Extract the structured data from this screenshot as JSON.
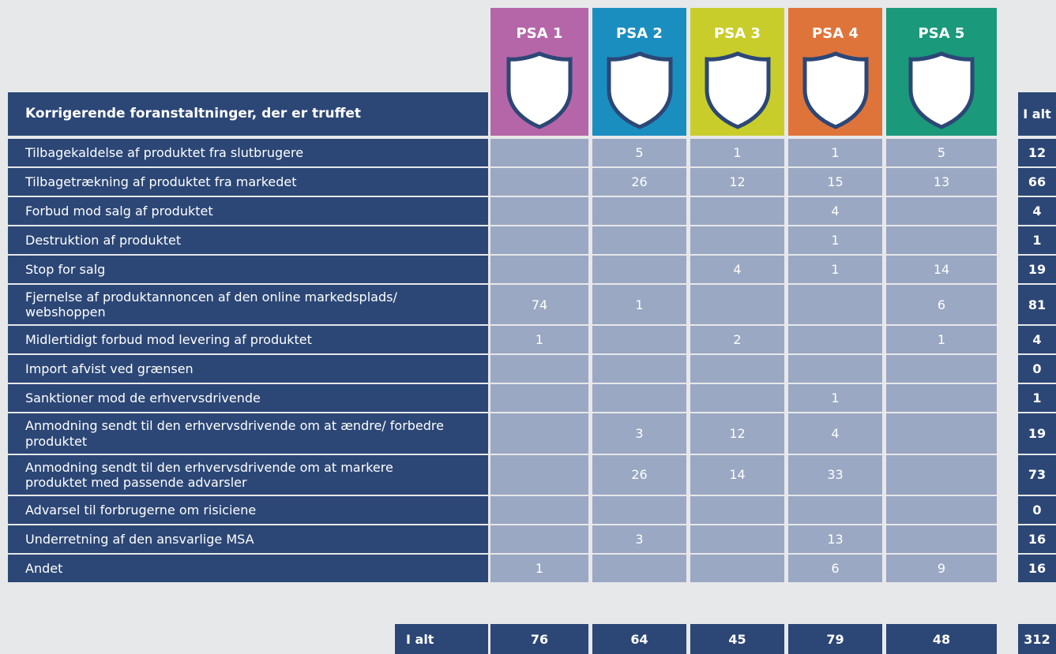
{
  "header": {
    "title": "Korrigerende foranstaltninger, der er truffet",
    "columns": [
      "PSA 1",
      "PSA 2",
      "PSA 3",
      "PSA 4",
      "PSA 5"
    ],
    "total": "I alt"
  },
  "rows": [
    {
      "label": "Tilbagekaldelse af produktet fra slutbrugere",
      "values": [
        null,
        5,
        1,
        1,
        5
      ],
      "total": 12
    },
    {
      "label": "Tilbagetrækning af produktet fra markedet",
      "values": [
        null,
        26,
        12,
        15,
        13
      ],
      "total": 66
    },
    {
      "label": "Forbud mod salg af produktet",
      "values": [
        null,
        null,
        null,
        4,
        null
      ],
      "total": 4
    },
    {
      "label": "Destruktion af produktet",
      "values": [
        null,
        null,
        null,
        1,
        null
      ],
      "total": 1
    },
    {
      "label": "Stop for salg",
      "values": [
        null,
        null,
        4,
        1,
        14
      ],
      "total": 19
    },
    {
      "label": "Fjernelse af produktannoncen af den online markedsplads/ webshoppen",
      "values": [
        74,
        1,
        null,
        null,
        6
      ],
      "total": 81
    },
    {
      "label": "Midlertidigt forbud mod levering af produktet",
      "values": [
        1,
        null,
        2,
        null,
        1
      ],
      "total": 4
    },
    {
      "label": "Import afvist ved grænsen",
      "values": [
        null,
        null,
        null,
        null,
        null
      ],
      "total": 0
    },
    {
      "label": "Sanktioner mod de erhvervsdrivende",
      "values": [
        null,
        null,
        null,
        1,
        null
      ],
      "total": 1
    },
    {
      "label": "Anmodning sendt til den erhvervsdrivende om at ændre/ forbedre produktet",
      "values": [
        null,
        3,
        12,
        4,
        null
      ],
      "total": 19
    },
    {
      "label": "Anmodning sendt til den erhvervsdrivende om at markere produktet med passende advarsler",
      "values": [
        null,
        26,
        14,
        33,
        null
      ],
      "total": 73
    },
    {
      "label": "Advarsel til forbrugerne om risiciene",
      "values": [
        null,
        null,
        null,
        null,
        null
      ],
      "total": 0
    },
    {
      "label": "Underretning af den ansvarlige MSA",
      "values": [
        null,
        3,
        null,
        13,
        null
      ],
      "total": 16
    },
    {
      "label": "Andet",
      "values": [
        1,
        null,
        null,
        6,
        9
      ],
      "total": 16
    }
  ],
  "footer": {
    "label": "I alt",
    "values": [
      76,
      64,
      45,
      79,
      48
    ],
    "total": 312
  }
}
